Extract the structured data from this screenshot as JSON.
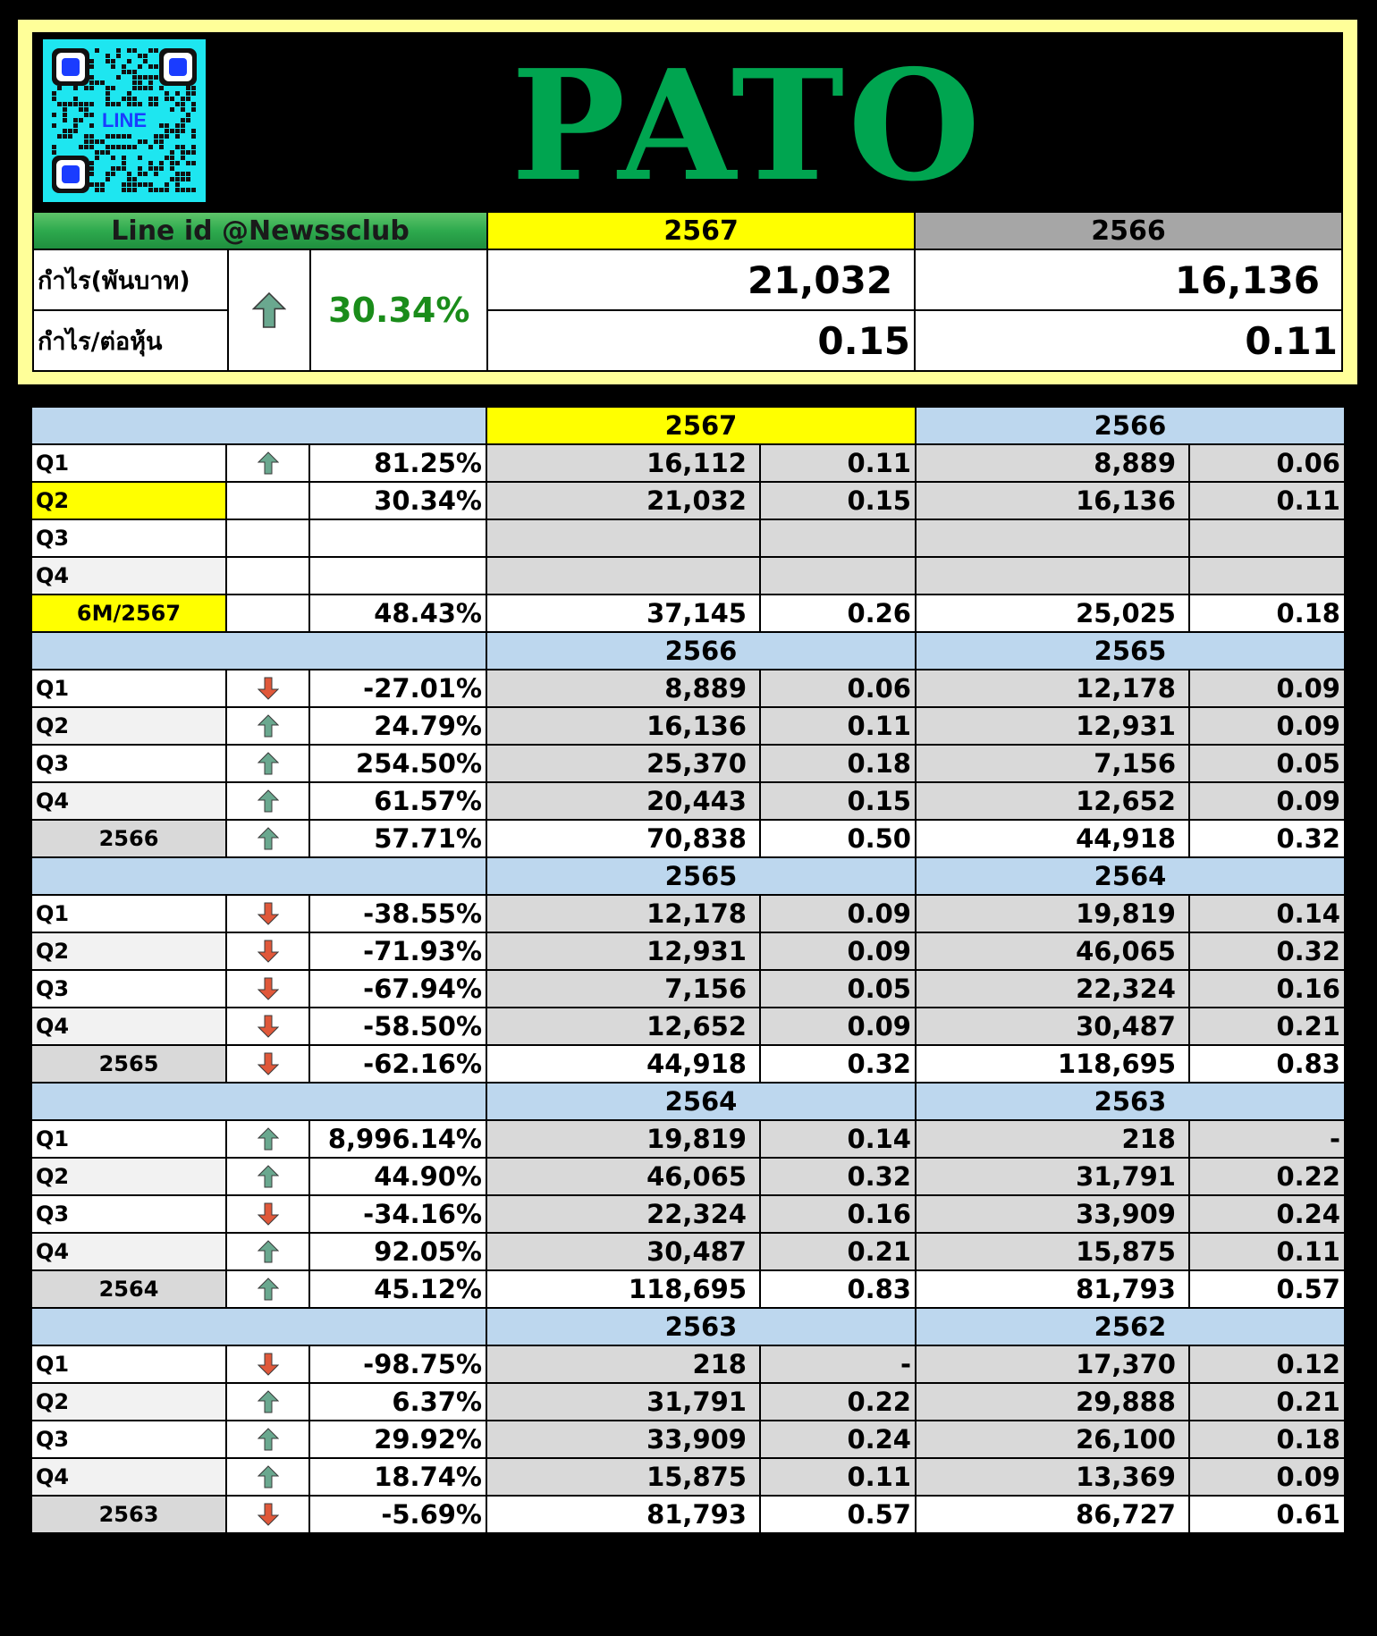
{
  "ticker": "PATO",
  "qr_label": "LINE",
  "colors": {
    "up_arrow": "#6aa88f",
    "down_arrow": "#e0583a",
    "positive": "#1a8c1a",
    "negative": "#e60000",
    "ticker": "#00a550",
    "frame": "#ffff99"
  },
  "summary": {
    "line_id": "Line id @Newssclub",
    "current_year": "2567",
    "previous_year": "2566",
    "profit_label": "กำไร(พันบาท)",
    "eps_label": "กำไร/ต่อหุ้น",
    "change": "30.34%",
    "trend": "up",
    "profit_current": "21,032",
    "profit_previous": "16,136",
    "eps_current": "0.15",
    "eps_previous": "0.11"
  },
  "sections": [
    {
      "current_year": "2567",
      "previous_year": "2566",
      "current_highlight": true,
      "rows": [
        {
          "label": "Q1",
          "trend": "up",
          "change": "81.25%",
          "profit": "16,112",
          "eps": "0.11",
          "prev_profit": "8,889",
          "prev_eps": "0.06"
        },
        {
          "label": "Q2",
          "label_highlight": true,
          "trend": "",
          "change": "30.34%",
          "profit": "21,032",
          "eps": "0.15",
          "prev_profit": "16,136",
          "prev_eps": "0.11"
        },
        {
          "label": "Q3",
          "trend": "",
          "change": "",
          "profit": "",
          "eps": "",
          "prev_profit": "",
          "prev_eps": ""
        },
        {
          "label": "Q4",
          "trend": "",
          "change": "",
          "profit": "",
          "eps": "",
          "prev_profit": "",
          "prev_eps": ""
        },
        {
          "label": "6M/2567",
          "total": true,
          "label_highlight": true,
          "trend": "",
          "change": "48.43%",
          "profit": "37,145",
          "eps": "0.26",
          "prev_profit": "25,025",
          "prev_eps": "0.18"
        }
      ]
    },
    {
      "current_year": "2566",
      "previous_year": "2565",
      "rows": [
        {
          "label": "Q1",
          "trend": "down",
          "change": "-27.01%",
          "profit": "8,889",
          "eps": "0.06",
          "prev_profit": "12,178",
          "prev_eps": "0.09"
        },
        {
          "label": "Q2",
          "trend": "up",
          "change": "24.79%",
          "profit": "16,136",
          "eps": "0.11",
          "prev_profit": "12,931",
          "prev_eps": "0.09"
        },
        {
          "label": "Q3",
          "trend": "up",
          "change": "254.50%",
          "profit": "25,370",
          "eps": "0.18",
          "prev_profit": "7,156",
          "prev_eps": "0.05"
        },
        {
          "label": "Q4",
          "trend": "up",
          "change": "61.57%",
          "profit": "20,443",
          "eps": "0.15",
          "prev_profit": "12,652",
          "prev_eps": "0.09"
        },
        {
          "label": "2566",
          "total": true,
          "trend": "up",
          "change": "57.71%",
          "profit": "70,838",
          "eps": "0.50",
          "prev_profit": "44,918",
          "prev_eps": "0.32"
        }
      ]
    },
    {
      "current_year": "2565",
      "previous_year": "2564",
      "rows": [
        {
          "label": "Q1",
          "trend": "down",
          "change": "-38.55%",
          "profit": "12,178",
          "eps": "0.09",
          "prev_profit": "19,819",
          "prev_eps": "0.14"
        },
        {
          "label": "Q2",
          "trend": "down",
          "change": "-71.93%",
          "profit": "12,931",
          "eps": "0.09",
          "prev_profit": "46,065",
          "prev_eps": "0.32"
        },
        {
          "label": "Q3",
          "trend": "down",
          "change": "-67.94%",
          "profit": "7,156",
          "eps": "0.05",
          "prev_profit": "22,324",
          "prev_eps": "0.16"
        },
        {
          "label": "Q4",
          "trend": "down",
          "change": "-58.50%",
          "profit": "12,652",
          "eps": "0.09",
          "prev_profit": "30,487",
          "prev_eps": "0.21"
        },
        {
          "label": "2565",
          "total": true,
          "trend": "down",
          "change": "-62.16%",
          "profit": "44,918",
          "eps": "0.32",
          "prev_profit": "118,695",
          "prev_eps": "0.83"
        }
      ]
    },
    {
      "current_year": "2564",
      "previous_year": "2563",
      "rows": [
        {
          "label": "Q1",
          "trend": "up",
          "change": "8,996.14%",
          "profit": "19,819",
          "eps": "0.14",
          "prev_profit": "218",
          "prev_eps": "-"
        },
        {
          "label": "Q2",
          "trend": "up",
          "change": "44.90%",
          "profit": "46,065",
          "eps": "0.32",
          "prev_profit": "31,791",
          "prev_eps": "0.22"
        },
        {
          "label": "Q3",
          "trend": "down",
          "change": "-34.16%",
          "profit": "22,324",
          "eps": "0.16",
          "prev_profit": "33,909",
          "prev_eps": "0.24"
        },
        {
          "label": "Q4",
          "trend": "up",
          "change": "92.05%",
          "profit": "30,487",
          "eps": "0.21",
          "prev_profit": "15,875",
          "prev_eps": "0.11"
        },
        {
          "label": "2564",
          "total": true,
          "trend": "up",
          "change": "45.12%",
          "profit": "118,695",
          "eps": "0.83",
          "prev_profit": "81,793",
          "prev_eps": "0.57"
        }
      ]
    },
    {
      "current_year": "2563",
      "previous_year": "2562",
      "rows": [
        {
          "label": "Q1",
          "trend": "down",
          "change": "-98.75%",
          "profit": "218",
          "eps": "-",
          "prev_profit": "17,370",
          "prev_eps": "0.12"
        },
        {
          "label": "Q2",
          "trend": "up",
          "change": "6.37%",
          "profit": "31,791",
          "eps": "0.22",
          "prev_profit": "29,888",
          "prev_eps": "0.21"
        },
        {
          "label": "Q3",
          "trend": "up",
          "change": "29.92%",
          "profit": "33,909",
          "eps": "0.24",
          "prev_profit": "26,100",
          "prev_eps": "0.18"
        },
        {
          "label": "Q4",
          "trend": "up",
          "change": "18.74%",
          "profit": "15,875",
          "eps": "0.11",
          "prev_profit": "13,369",
          "prev_eps": "0.09"
        },
        {
          "label": "2563",
          "total": true,
          "trend": "down",
          "change": "-5.69%",
          "profit": "81,793",
          "eps": "0.57",
          "prev_profit": "86,727",
          "prev_eps": "0.61"
        }
      ]
    }
  ]
}
